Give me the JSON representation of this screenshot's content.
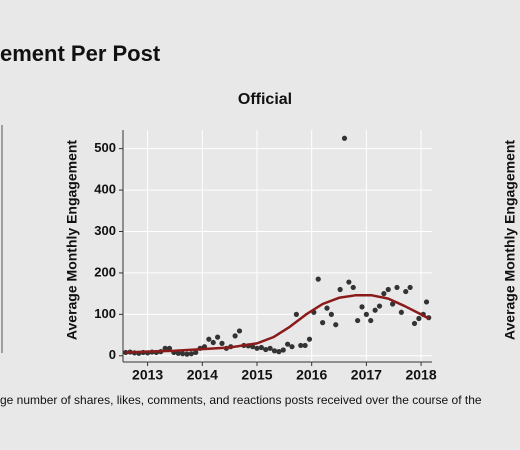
{
  "page_title": "ement Per Post",
  "caption": "ge number of shares, likes, comments, and reactions posts received over the course of the",
  "other_panels": [
    {
      "ylabel": "Average Monthly Engagement"
    }
  ],
  "chart_data": {
    "type": "scatter",
    "title": "Official",
    "ylabel": "Average Monthly Engagement",
    "xlim": [
      2012.55,
      2018.2
    ],
    "xticks": [
      2013,
      2014,
      2015,
      2016,
      2017,
      2018
    ],
    "ylim": [
      -15,
      545
    ],
    "yticks": [
      0,
      100,
      200,
      300,
      400,
      500
    ],
    "grid": true,
    "series": [
      {
        "kind": "points",
        "color": "#333333",
        "x": [
          2012.6,
          2012.68,
          2012.76,
          2012.84,
          2012.92,
          2013.0,
          2013.08,
          2013.16,
          2013.24,
          2013.32,
          2013.4,
          2013.48,
          2013.56,
          2013.64,
          2013.72,
          2013.8,
          2013.88,
          2013.96,
          2014.04,
          2014.12,
          2014.2,
          2014.28,
          2014.36,
          2014.44,
          2014.52,
          2014.6,
          2014.68,
          2014.76,
          2014.84,
          2014.92,
          2015.0,
          2015.08,
          2015.16,
          2015.24,
          2015.32,
          2015.4,
          2015.48,
          2015.56,
          2015.64,
          2015.72,
          2015.8,
          2015.88,
          2015.96,
          2016.04,
          2016.12,
          2016.2,
          2016.28,
          2016.36,
          2016.44,
          2016.52,
          2016.6,
          2016.68,
          2016.76,
          2016.84,
          2016.92,
          2017.0,
          2017.08,
          2017.16,
          2017.24,
          2017.32,
          2017.4,
          2017.48,
          2017.56,
          2017.64,
          2017.72,
          2017.8,
          2017.88,
          2017.96,
          2018.04,
          2018.1,
          2018.14
        ],
        "values": [
          8,
          9,
          7,
          6,
          8,
          7,
          9,
          8,
          10,
          18,
          18,
          8,
          6,
          5,
          4,
          5,
          8,
          18,
          22,
          40,
          32,
          45,
          30,
          18,
          22,
          48,
          60,
          25,
          24,
          22,
          18,
          20,
          15,
          18,
          12,
          10,
          14,
          28,
          22,
          100,
          25,
          25,
          40,
          105,
          185,
          80,
          115,
          100,
          75,
          160,
          525,
          178,
          165,
          85,
          118,
          100,
          85,
          110,
          120,
          150,
          160,
          125,
          165,
          105,
          155,
          165,
          78,
          90,
          100,
          130,
          92
        ]
      },
      {
        "kind": "line",
        "color": "#8b1a1a",
        "x": [
          2012.6,
          2013.0,
          2013.5,
          2014.0,
          2014.5,
          2015.0,
          2015.3,
          2015.6,
          2015.9,
          2016.2,
          2016.5,
          2016.8,
          2017.1,
          2017.4,
          2017.7,
          2018.0,
          2018.14
        ],
        "values": [
          8,
          10,
          12,
          16,
          20,
          30,
          45,
          70,
          100,
          125,
          140,
          146,
          146,
          138,
          120,
          100,
          90
        ]
      }
    ]
  }
}
